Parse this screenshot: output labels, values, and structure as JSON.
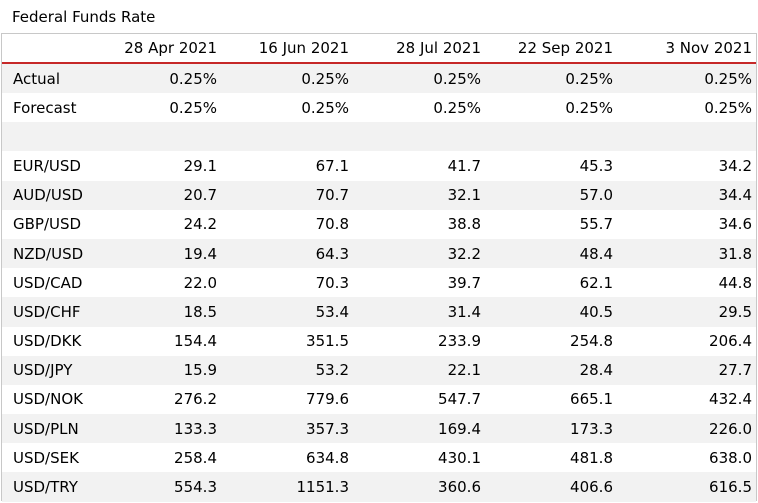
{
  "title": "Federal Funds Rate",
  "dates": [
    "28 Apr 2021",
    "16 Jun 2021",
    "28 Jul 2021",
    "22 Sep 2021",
    "3 Nov 2021"
  ],
  "rate_rows": [
    {
      "label": "Actual",
      "values": [
        "0.25%",
        "0.25%",
        "0.25%",
        "0.25%",
        "0.25%"
      ]
    },
    {
      "label": "Forecast",
      "values": [
        "0.25%",
        "0.25%",
        "0.25%",
        "0.25%",
        "0.25%"
      ]
    }
  ],
  "pair_rows": [
    {
      "label": "EUR/USD",
      "values": [
        "29.1",
        "67.1",
        "41.7",
        "45.3",
        "34.2"
      ]
    },
    {
      "label": "AUD/USD",
      "values": [
        "20.7",
        "70.7",
        "32.1",
        "57.0",
        "34.4"
      ]
    },
    {
      "label": "GBP/USD",
      "values": [
        "24.2",
        "70.8",
        "38.8",
        "55.7",
        "34.6"
      ]
    },
    {
      "label": "NZD/USD",
      "values": [
        "19.4",
        "64.3",
        "32.2",
        "48.4",
        "31.8"
      ]
    },
    {
      "label": "USD/CAD",
      "values": [
        "22.0",
        "70.3",
        "39.7",
        "62.1",
        "44.8"
      ]
    },
    {
      "label": "USD/CHF",
      "values": [
        "18.5",
        "53.4",
        "31.4",
        "40.5",
        "29.5"
      ]
    },
    {
      "label": "USD/DKK",
      "values": [
        "154.4",
        "351.5",
        "233.9",
        "254.8",
        "206.4"
      ]
    },
    {
      "label": "USD/JPY",
      "values": [
        "15.9",
        "53.2",
        "22.1",
        "28.4",
        "27.7"
      ]
    },
    {
      "label": "USD/NOK",
      "values": [
        "276.2",
        "779.6",
        "547.7",
        "665.1",
        "432.4"
      ]
    },
    {
      "label": "USD/PLN",
      "values": [
        "133.3",
        "357.3",
        "169.4",
        "173.3",
        "226.0"
      ]
    },
    {
      "label": "USD/SEK",
      "values": [
        "258.4",
        "634.8",
        "430.1",
        "481.8",
        "638.0"
      ]
    },
    {
      "label": "USD/TRY",
      "values": [
        "554.3",
        "1151.3",
        "360.6",
        "406.6",
        "616.5"
      ]
    }
  ],
  "colors": {
    "header_rule": "#c62828",
    "alt_row": "#f2f2f2",
    "border": "#c8c8c8"
  }
}
